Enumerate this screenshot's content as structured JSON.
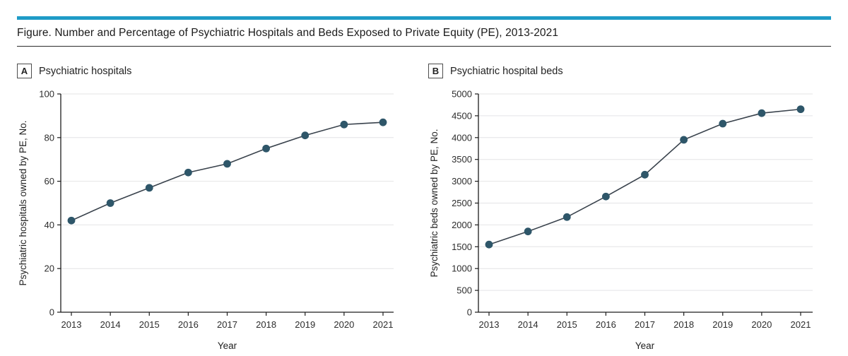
{
  "figure": {
    "title": "Figure. Number and Percentage of Psychiatric Hospitals and Beds Exposed to Private Equity (PE), 2013-2021",
    "accent_color": "#1f9bc7",
    "rule_color": "#2b2b2b"
  },
  "chart_data": [
    {
      "type": "line",
      "panel_letter": "A",
      "panel_title": "Psychiatric hospitals",
      "categories": [
        "2013",
        "2014",
        "2015",
        "2016",
        "2017",
        "2018",
        "2019",
        "2020",
        "2021"
      ],
      "values": [
        42,
        50,
        57,
        64,
        68,
        75,
        81,
        86,
        87
      ],
      "xlabel": "Year",
      "ylabel": "Psychiatric hospitals owned by PE, No.",
      "ylim": [
        0,
        100
      ],
      "ytick_step": 20,
      "grid": true,
      "legend": "none",
      "marker_color": "#2e5669",
      "line_color": "#39424c",
      "grid_color": "#e4e4e6",
      "axis_color": "#1c1c1c"
    },
    {
      "type": "line",
      "panel_letter": "B",
      "panel_title": "Psychiatric hospital beds",
      "categories": [
        "2013",
        "2014",
        "2015",
        "2016",
        "2017",
        "2018",
        "2019",
        "2020",
        "2021"
      ],
      "values": [
        1550,
        1850,
        2180,
        2650,
        3150,
        3950,
        4320,
        4560,
        4650
      ],
      "xlabel": "Year",
      "ylabel": "Psychiatric beds owned by PE, No.",
      "ylim": [
        0,
        5000
      ],
      "ytick_step": 500,
      "grid": true,
      "legend": "none",
      "marker_color": "#2e5669",
      "line_color": "#39424c",
      "grid_color": "#e4e4e6",
      "axis_color": "#1c1c1c"
    }
  ]
}
